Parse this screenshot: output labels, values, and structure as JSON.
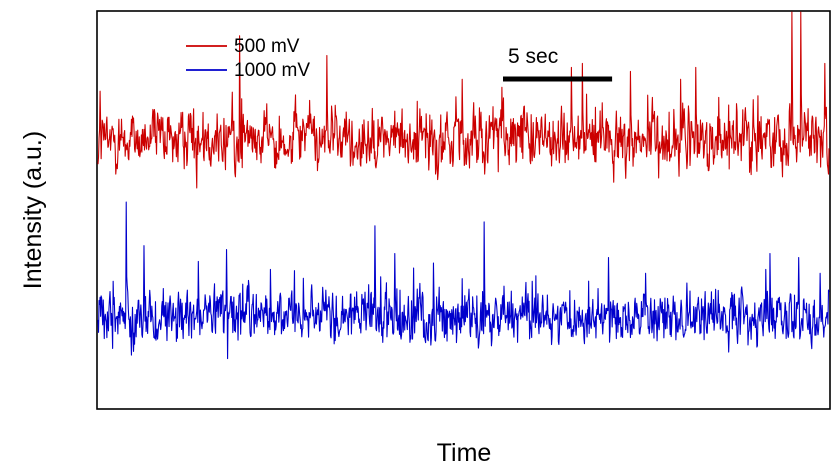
{
  "chart_data": {
    "type": "line",
    "title": "",
    "xlabel": "Time",
    "ylabel": "Intensity (a.u.)",
    "ticks_visible": false,
    "grid": false,
    "legend_position": "top-left",
    "scale_bar": {
      "label": "5 sec",
      "length_sec": 5,
      "position": "top-center"
    },
    "x_range_sec": [
      0,
      33.5
    ],
    "ylim": [
      0,
      10
    ],
    "series": [
      {
        "name": "500 mV",
        "color": "#cc0000",
        "baseline": 6.8,
        "noise_amplitude": 0.35,
        "spikes": [
          {
            "t": 0.1,
            "height": 1.2
          },
          {
            "t": 6.5,
            "height": 2.6
          },
          {
            "t": 10.5,
            "height": 2.1
          },
          {
            "t": 16.7,
            "height": 1.5
          },
          {
            "t": 18.5,
            "height": 1.3
          },
          {
            "t": 21.7,
            "height": 1.8
          },
          {
            "t": 22.2,
            "height": 1.9
          },
          {
            "t": 24.4,
            "height": 1.7
          },
          {
            "t": 26.7,
            "height": 1.5
          },
          {
            "t": 27.4,
            "height": 1.8
          },
          {
            "t": 31.8,
            "height": 3.9
          },
          {
            "t": 32.2,
            "height": 3.2
          },
          {
            "t": 33.3,
            "height": 1.9
          }
        ]
      },
      {
        "name": "1000 mV",
        "color": "#0000cc",
        "baseline": 2.3,
        "noise_amplitude": 0.3,
        "spikes": [
          {
            "t": 0.7,
            "height": 0.9
          },
          {
            "t": 1.3,
            "height": 2.9
          },
          {
            "t": 2.1,
            "height": 1.8
          },
          {
            "t": 4.6,
            "height": 1.4
          },
          {
            "t": 5.9,
            "height": 1.7
          },
          {
            "t": 7.9,
            "height": 1.2
          },
          {
            "t": 12.7,
            "height": 2.3
          },
          {
            "t": 13.6,
            "height": 1.6
          },
          {
            "t": 17.7,
            "height": 2.4
          },
          {
            "t": 19.9,
            "height": 0.9
          },
          {
            "t": 23.4,
            "height": 1.5
          },
          {
            "t": 25.1,
            "height": 1.1
          },
          {
            "t": 30.6,
            "height": 1.2
          },
          {
            "t": 30.8,
            "height": 1.6
          },
          {
            "t": 32.1,
            "height": 1.5
          },
          {
            "t": 33.1,
            "height": 1.1
          }
        ]
      }
    ]
  }
}
